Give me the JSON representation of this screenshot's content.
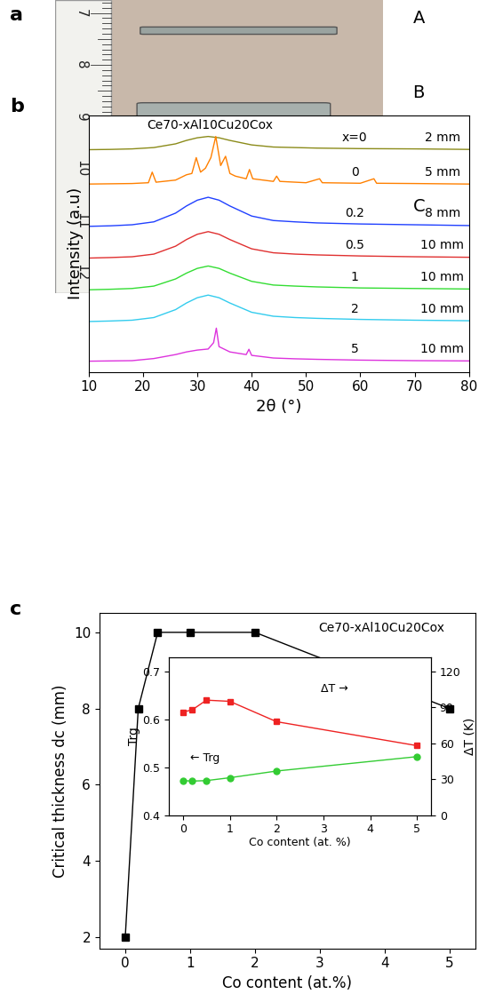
{
  "panel_a": {
    "panel_label": "a",
    "ruler_labels": [
      7,
      8,
      9,
      10,
      11,
      12
    ],
    "sample_labels": [
      "A",
      "B",
      "C"
    ]
  },
  "chart_data": [
    {
      "panel_label": "b",
      "type": "line",
      "title": "Ce70-xAl10Cu20Cox",
      "x_label": "2θ (°)",
      "y_label": "Intensity (a.u)",
      "xlim": [
        10,
        80
      ],
      "xticks": [
        10,
        20,
        30,
        40,
        50,
        60,
        70,
        80
      ],
      "ylim": [
        0.8,
        10.5
      ],
      "yticks": [],
      "tick_labels": "x",
      "series": [
        {
          "name": "x=0",
          "thickness": "2 mm",
          "color": "#8b8b1a",
          "x": [
            10,
            14,
            18,
            22,
            26,
            28,
            30,
            32,
            34,
            36,
            40,
            44,
            48,
            52,
            60,
            70,
            80
          ],
          "values": [
            9.2,
            9.21,
            9.23,
            9.28,
            9.42,
            9.55,
            9.65,
            9.7,
            9.65,
            9.55,
            9.38,
            9.3,
            9.28,
            9.26,
            9.24,
            9.23,
            9.21
          ]
        },
        {
          "name": "0",
          "thickness": "5 mm",
          "color": "#ff8000",
          "x": [
            10,
            18,
            21,
            21.7,
            22.4,
            26,
            28,
            29,
            29.8,
            30.6,
            31.5,
            32.5,
            33.4,
            34.3,
            35.2,
            36,
            37,
            39,
            39.6,
            40.2,
            44,
            44.6,
            45.2,
            50,
            52.5,
            53,
            60,
            62.5,
            63,
            70,
            80
          ],
          "values": [
            7.9,
            7.92,
            7.95,
            8.35,
            7.97,
            8.05,
            8.25,
            8.3,
            8.9,
            8.35,
            8.5,
            8.9,
            9.7,
            8.6,
            8.95,
            8.3,
            8.2,
            8.1,
            8.45,
            8.1,
            8.0,
            8.2,
            8.0,
            7.95,
            8.1,
            7.95,
            7.93,
            8.1,
            7.93,
            7.92,
            7.9
          ]
        },
        {
          "name": "0.2",
          "thickness": "8 mm",
          "color": "#2040ff",
          "x": [
            10,
            14,
            18,
            22,
            26,
            28,
            30,
            32,
            34,
            36,
            40,
            44,
            48,
            52,
            60,
            70,
            80
          ],
          "values": [
            6.3,
            6.32,
            6.36,
            6.47,
            6.8,
            7.07,
            7.29,
            7.4,
            7.29,
            7.07,
            6.69,
            6.52,
            6.47,
            6.43,
            6.39,
            6.36,
            6.33
          ]
        },
        {
          "name": "0.5",
          "thickness": "10 mm",
          "color": "#e03030",
          "x": [
            10,
            14,
            18,
            22,
            26,
            28,
            30,
            32,
            34,
            36,
            40,
            44,
            48,
            52,
            60,
            70,
            80
          ],
          "values": [
            5.1,
            5.12,
            5.15,
            5.25,
            5.55,
            5.8,
            6.0,
            6.1,
            6.0,
            5.8,
            5.45,
            5.3,
            5.25,
            5.22,
            5.18,
            5.15,
            5.13
          ]
        },
        {
          "name": "1",
          "thickness": "10 mm",
          "color": "#33dd33",
          "x": [
            10,
            14,
            18,
            22,
            26,
            28,
            30,
            32,
            34,
            36,
            40,
            44,
            48,
            52,
            60,
            70,
            80
          ],
          "values": [
            3.9,
            3.92,
            3.95,
            4.04,
            4.31,
            4.53,
            4.71,
            4.8,
            4.71,
            4.53,
            4.22,
            4.08,
            4.04,
            4.01,
            3.97,
            3.95,
            3.93
          ]
        },
        {
          "name": "2",
          "thickness": "10 mm",
          "color": "#33ccee",
          "x": [
            10,
            14,
            18,
            22,
            26,
            28,
            30,
            32,
            34,
            36,
            40,
            44,
            48,
            52,
            60,
            70,
            80
          ],
          "values": [
            2.7,
            2.72,
            2.75,
            2.85,
            3.15,
            3.4,
            3.6,
            3.7,
            3.6,
            3.4,
            3.05,
            2.9,
            2.85,
            2.82,
            2.78,
            2.75,
            2.73
          ]
        },
        {
          "name": "5",
          "thickness": "10 mm",
          "color": "#dd33dd",
          "x": [
            10,
            18,
            22,
            26,
            28,
            30,
            32,
            33,
            33.5,
            34,
            36,
            39,
            39.5,
            40,
            44,
            48,
            52,
            60,
            70,
            80
          ],
          "values": [
            1.2,
            1.22,
            1.3,
            1.45,
            1.55,
            1.62,
            1.66,
            1.9,
            2.45,
            1.75,
            1.55,
            1.45,
            1.65,
            1.42,
            1.32,
            1.29,
            1.27,
            1.24,
            1.22,
            1.21
          ]
        }
      ]
    },
    {
      "panel_label": "c",
      "type": "line",
      "title": "Ce70-xAl10Cu20Cox",
      "x_label": "Co content (at.%)",
      "y_label": "Critical thickness dc (mm)",
      "xlim": [
        -0.4,
        5.4
      ],
      "xticks": [
        0,
        1,
        2,
        3,
        4,
        5
      ],
      "ylim": [
        1.7,
        10.5
      ],
      "yticks": [
        2,
        4,
        6,
        8,
        10
      ],
      "series": [
        {
          "color": "#000000",
          "marker": "square",
          "x": [
            0,
            0.2,
            0.5,
            1,
            2,
            5
          ],
          "values": [
            2,
            8,
            10,
            10,
            10,
            8
          ]
        }
      ]
    },
    {
      "type": "line",
      "x_label": "Co content (at. %)",
      "y_label": "Trg",
      "y2_label": "ΔT (K)",
      "annotations": [
        "← Trg",
        "ΔT →"
      ],
      "xlim": [
        -0.3,
        5.3
      ],
      "xticks": [
        0,
        1,
        2,
        3,
        4,
        5
      ],
      "ylim": [
        0.4,
        0.73
      ],
      "yticks": [
        0.4,
        0.5,
        0.6,
        0.7
      ],
      "y2lim": [
        0,
        132
      ],
      "y2ticks": [
        0,
        30,
        60,
        90,
        120
      ],
      "series": [
        {
          "color": "#33cc33",
          "marker": "circle",
          "x": [
            0,
            0.2,
            0.5,
            1,
            2,
            5
          ],
          "values": [
            0.472,
            0.471,
            0.472,
            0.478,
            0.492,
            0.522
          ]
        },
        {
          "color": "#ee2222",
          "marker": "square",
          "axis": "y2",
          "x": [
            0,
            0.2,
            0.5,
            1,
            2,
            5
          ],
          "values": [
            86,
            88,
            96,
            95,
            78,
            58
          ]
        }
      ]
    }
  ]
}
